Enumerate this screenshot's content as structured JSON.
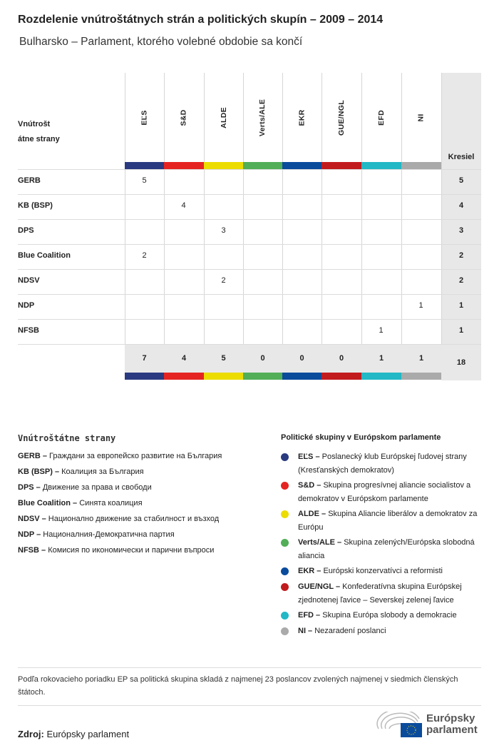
{
  "title": "Rozdelenie vnútroštátnych strán a politických skupín – 2009 – 2014",
  "subtitle": "Bulharsko – Parlament, ktorého volebné obdobie sa končí",
  "chart_data": {
    "type": "table",
    "row_header": "Vnútrošt átne strany",
    "total_header": "Kresiel",
    "groups": [
      {
        "name": "EĽS",
        "color": "#2a3a80"
      },
      {
        "name": "S&D",
        "color": "#e52421"
      },
      {
        "name": "ALDE",
        "color": "#ecdc00"
      },
      {
        "name": "Verts/ALE",
        "color": "#52ae57"
      },
      {
        "name": "EKR",
        "color": "#0a4b9c"
      },
      {
        "name": "GUE/NGL",
        "color": "#c21b1e"
      },
      {
        "name": "EFD",
        "color": "#22b8c5"
      },
      {
        "name": "NI",
        "color": "#aaaaaa"
      }
    ],
    "rows": [
      {
        "party": "GERB",
        "values": [
          "5",
          "",
          "",
          "",
          "",
          "",
          "",
          ""
        ],
        "total": "5"
      },
      {
        "party": "KB (BSP)",
        "values": [
          "",
          "4",
          "",
          "",
          "",
          "",
          "",
          ""
        ],
        "total": "4"
      },
      {
        "party": "DPS",
        "values": [
          "",
          "",
          "3",
          "",
          "",
          "",
          "",
          ""
        ],
        "total": "3"
      },
      {
        "party": "Blue Coalition",
        "values": [
          "2",
          "",
          "",
          "",
          "",
          "",
          "",
          ""
        ],
        "total": "2"
      },
      {
        "party": "NDSV",
        "values": [
          "",
          "",
          "2",
          "",
          "",
          "",
          "",
          ""
        ],
        "total": "2"
      },
      {
        "party": "NDP",
        "values": [
          "",
          "",
          "",
          "",
          "",
          "",
          "",
          "1"
        ],
        "total": "1"
      },
      {
        "party": "NFSB",
        "values": [
          "",
          "",
          "",
          "",
          "",
          "",
          "1",
          ""
        ],
        "total": "1"
      }
    ],
    "totals": [
      "7",
      "4",
      "5",
      "0",
      "0",
      "0",
      "1",
      "1"
    ],
    "grand_total": "18"
  },
  "legend_parties": {
    "title": "Vnútroštátne strany",
    "items": [
      {
        "abbr": "GERB",
        "name": "Граждани за европейско развитие на България"
      },
      {
        "abbr": "KB (BSP)",
        "name": "Коалиция за България"
      },
      {
        "abbr": "DPS",
        "name": "Движение за права и свободи"
      },
      {
        "abbr": "Blue Coalition",
        "name": "Синята коалиция"
      },
      {
        "abbr": "NDSV",
        "name": "Национално движение за стабилност и възход"
      },
      {
        "abbr": "NDP",
        "name": "Националния-Демократична партия"
      },
      {
        "abbr": "NFSB",
        "name": "Комисия по икономически и парични въпроси"
      }
    ]
  },
  "legend_groups": {
    "title": "Politické skupiny v Európskom parlamente",
    "items": [
      {
        "abbr": "EĽS",
        "name": "Poslanecký klub Európskej ľudovej strany (Kresťanských demokratov)"
      },
      {
        "abbr": "S&D",
        "name": "Skupina progresívnej aliancie socialistov a demokratov v Európskom parlamente"
      },
      {
        "abbr": "ALDE",
        "name": "Skupina Aliancie liberálov a demokratov za Európu"
      },
      {
        "abbr": "Verts/ALE",
        "name": "Skupina zelených/Európska slobodná aliancia"
      },
      {
        "abbr": "EKR",
        "name": "Európski konzervatívci a reformisti"
      },
      {
        "abbr": "GUE/NGL",
        "name": "Konfederatívna skupina Európskej zjednotenej ľavice – Severskej zelenej ľavice"
      },
      {
        "abbr": "EFD",
        "name": "Skupina Európa slobody a demokracie"
      },
      {
        "abbr": "NI",
        "name": "Nezaradení poslanci"
      }
    ]
  },
  "note": "Podľa rokovacieho poriadku EP sa politická skupina skladá z najmenej 23 poslancov zvolených najmenej v siedmich členských štátoch.",
  "source": {
    "label": "Zdroj:",
    "value": "Európsky parlament"
  },
  "logo": {
    "line1": "Európsky",
    "line2": "parlament"
  }
}
